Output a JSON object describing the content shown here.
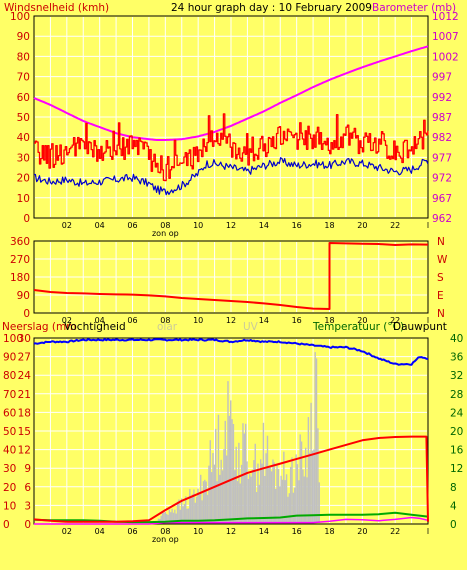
{
  "colors": {
    "background": "#ffff66",
    "grid": "#ffffff",
    "wind": "#ff0000",
    "gust": "#0000cc",
    "barometer": "#ff00ff",
    "direction": "#ff0000",
    "humidity": "#0000ff",
    "rain": "#c0c0c0",
    "temperature": "#ff0000",
    "dewpoint": "#00aa00",
    "solar_uv": "#ff00ff",
    "left_axis": "#cc0000",
    "right_axis_top": "#cc00cc",
    "right_axis_bottom": "#006600"
  },
  "chart_data": [
    {
      "type": "line",
      "title": "24 hour graph day : 10 February 2009",
      "left_label": "Windsnelheid (kmh)",
      "right_label": "Barometer (mb)",
      "x_ticks": [
        "02",
        "04",
        "06",
        "08",
        "10",
        "12",
        "14",
        "16",
        "18",
        "20",
        "22",
        "l"
      ],
      "x_sublabel": "zon op",
      "y_left_ticks": [
        100,
        90,
        80,
        70,
        60,
        50,
        40,
        30,
        20,
        10,
        0
      ],
      "y_left_range": [
        0,
        100
      ],
      "y_right_ticks": [
        1012,
        1007,
        1002,
        997,
        992,
        987,
        982,
        977,
        972,
        967,
        962
      ],
      "y_right_range": [
        962,
        1012
      ],
      "series": {
        "barometer": {
          "x": [
            0,
            1,
            2,
            3,
            4,
            5,
            6,
            7,
            7.5,
            8,
            9,
            10,
            11,
            12,
            13,
            14,
            15,
            16,
            17,
            18,
            19,
            20,
            21,
            22,
            23,
            24
          ],
          "y": [
            991.7,
            990.0,
            988.0,
            986.0,
            984.5,
            983.0,
            982.0,
            981.5,
            981.3,
            981.3,
            981.5,
            982.2,
            983.3,
            984.8,
            986.6,
            988.4,
            990.5,
            992.4,
            994.4,
            996.2,
            997.8,
            999.3,
            1000.7,
            1002.0,
            1003.3,
            1004.5
          ]
        },
        "wind": {
          "x": [
            0,
            1,
            2,
            3,
            4,
            5,
            6,
            7,
            7.5,
            8,
            9,
            10,
            10.5,
            11,
            12,
            13,
            14,
            15,
            16,
            17,
            18,
            19,
            20,
            21,
            22,
            23,
            24
          ],
          "y": [
            33,
            30,
            33,
            35,
            32,
            33,
            37,
            30,
            26,
            24,
            27,
            32,
            38,
            40,
            36,
            32,
            35,
            40,
            39,
            40,
            37,
            41,
            36,
            38,
            32,
            35,
            40
          ]
        },
        "gust": {
          "x": [
            0,
            1,
            2,
            3,
            4,
            5,
            6,
            7,
            7.5,
            8,
            9,
            10,
            10.5,
            11,
            12,
            13,
            14,
            15,
            16,
            17,
            18,
            19,
            20,
            21,
            22,
            23,
            24
          ],
          "y": [
            20,
            18,
            19,
            17,
            18,
            19,
            20,
            17,
            14,
            13,
            16,
            22,
            27,
            27,
            25,
            23,
            26,
            28,
            26,
            27,
            26,
            28,
            27,
            25,
            23,
            24,
            29
          ]
        }
      }
    },
    {
      "type": "line",
      "x_ticks": [
        "02",
        "04",
        "06",
        "08",
        "10",
        "12",
        "14",
        "16",
        "18",
        "20",
        "22",
        "l"
      ],
      "x_sublabel": "zon op",
      "y_left_ticks": [
        360,
        270,
        180,
        90,
        0
      ],
      "y_left_range": [
        0,
        360
      ],
      "y_right_ticks": [
        "N",
        "W",
        "S",
        "E",
        "N"
      ],
      "series": {
        "direction": {
          "x": [
            0,
            1,
            2,
            3,
            4,
            5,
            6,
            7,
            8,
            9,
            10,
            11,
            12,
            13,
            14,
            15,
            16,
            17,
            18,
            18,
            19,
            20,
            21,
            22,
            23,
            24
          ],
          "y": [
            115,
            105,
            100,
            98,
            95,
            93,
            92,
            88,
            83,
            75,
            70,
            65,
            60,
            55,
            48,
            40,
            30,
            22,
            20,
            350,
            348,
            346,
            345,
            340,
            343,
            342
          ]
        }
      }
    },
    {
      "type": "line",
      "labels": [
        "Neerslag (mm",
        "Vochtigheid",
        "olar",
        "UV",
        "Temperatuur (°C)",
        "Dauwpunt"
      ],
      "x_ticks": [
        "02",
        "04",
        "06",
        "08",
        "10",
        "12",
        "14",
        "16",
        "18",
        "20",
        "22",
        "l"
      ],
      "x_sublabel": "zon op",
      "y_left_ticks": [
        100,
        90,
        80,
        70,
        60,
        50,
        40,
        30,
        20,
        10,
        0
      ],
      "y_left_range": [
        0,
        100
      ],
      "y_rain_ticks": [
        30,
        27,
        24,
        21,
        18,
        15,
        12,
        9,
        6,
        3,
        0
      ],
      "y_rain_range": [
        0,
        30
      ],
      "y_right_ticks": [
        40,
        36,
        32,
        28,
        24,
        20,
        16,
        12,
        8,
        4,
        0
      ],
      "y_right_range": [
        0,
        40
      ],
      "series": {
        "humidity": {
          "x": [
            0,
            1,
            2,
            3,
            4,
            5,
            6,
            7,
            8,
            9,
            10,
            11,
            12,
            13,
            14,
            15,
            16,
            17,
            18,
            19,
            20,
            21,
            22,
            23,
            23.5,
            24
          ],
          "y": [
            97,
            98,
            98,
            99,
            99,
            99,
            99,
            99,
            99,
            99,
            99,
            99,
            98,
            99,
            98,
            98,
            97,
            96,
            95,
            95,
            93,
            89,
            86,
            86,
            90,
            89
          ]
        },
        "temperature": {
          "x": [
            0,
            1,
            2,
            3,
            4,
            5,
            6,
            7,
            8,
            9,
            10,
            11,
            12,
            13,
            14,
            15,
            16,
            17,
            18,
            19,
            20,
            21,
            22,
            23,
            23.9,
            24
          ],
          "y": [
            1.0,
            0.7,
            0.5,
            0.5,
            0.5,
            0.5,
            0.6,
            0.8,
            3.0,
            5.0,
            6.5,
            8.0,
            9.5,
            11.0,
            12.0,
            13.0,
            14.0,
            15.0,
            16.0,
            17.0,
            18.0,
            18.5,
            18.7,
            18.8,
            18.8,
            0.5
          ]
        },
        "dewpoint": {
          "x": [
            0,
            1,
            2,
            3,
            4,
            5,
            6,
            7,
            8,
            9,
            10,
            11,
            12,
            13,
            14,
            15,
            16,
            17,
            18,
            19,
            20,
            21,
            22,
            23,
            24
          ],
          "y": [
            0.9,
            0.8,
            0.8,
            0.8,
            0.7,
            0.5,
            0.4,
            0.4,
            0.5,
            0.7,
            0.7,
            0.8,
            1.0,
            1.2,
            1.3,
            1.4,
            1.8,
            1.9,
            2.0,
            2.0,
            2.0,
            2.1,
            2.4,
            2.0,
            1.6
          ]
        },
        "solar": {
          "x": [
            0,
            6,
            7,
            8,
            10,
            12,
            14,
            16,
            17,
            18,
            19,
            20,
            21,
            22,
            23,
            23.5,
            24
          ],
          "y": [
            0,
            0,
            0,
            0.3,
            0.3,
            0.3,
            0.3,
            0.3,
            0.3,
            0.6,
            1.0,
            0.9,
            0.7,
            1.0,
            1.4,
            1.2,
            0.8
          ]
        },
        "rain": {
          "x": [
            7.5,
            8,
            8.5,
            9,
            9.5,
            10,
            10.5,
            11,
            11.5,
            12,
            12.5,
            13,
            13.5,
            14,
            14.5,
            15,
            15.5,
            16,
            16.5,
            17,
            17.2,
            17.4
          ],
          "y": [
            0.5,
            2,
            2.5,
            3,
            4,
            5,
            8,
            11,
            15,
            17,
            11,
            12,
            9,
            12,
            8,
            9,
            7,
            10,
            10,
            18,
            25,
            4
          ]
        }
      }
    }
  ]
}
